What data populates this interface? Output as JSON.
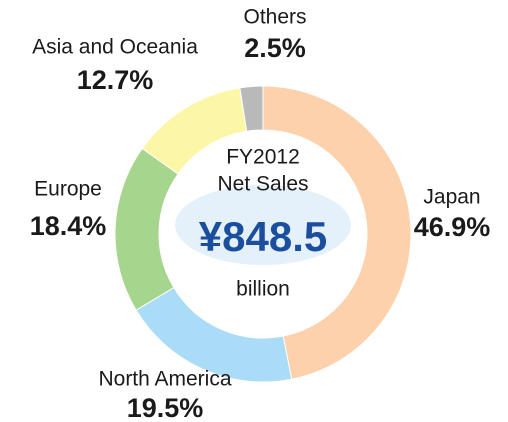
{
  "chart_data": {
    "type": "pie",
    "categories": [
      "Japan",
      "North America",
      "Europe",
      "Asia and Oceania",
      "Others"
    ],
    "values": [
      46.9,
      19.5,
      18.4,
      12.7,
      2.5
    ],
    "value_labels": [
      "46.9%",
      "19.5%",
      "18.4%",
      "12.7%",
      "2.5%"
    ],
    "colors": [
      "#fcd1ab",
      "#abdcf7",
      "#a6d58e",
      "#fbf7a6",
      "#b9b9b9"
    ],
    "center_text": [
      "FY2012",
      "Net Sales",
      "¥848.5",
      "billion"
    ]
  }
}
